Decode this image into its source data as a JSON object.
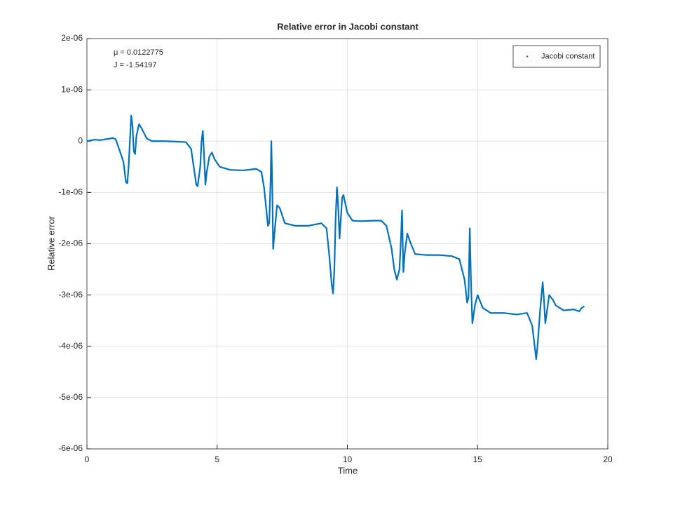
{
  "chart_data": {
    "type": "line",
    "title": "Relative error in Jacobi constant",
    "xlabel": "Time",
    "ylabel": "Relative error",
    "annotations": [
      "μ = 0.0122775",
      "J = -1.54197"
    ],
    "legend": "northeast",
    "grid": true,
    "xlim": [
      0,
      20
    ],
    "xticks": [
      0,
      5,
      10,
      15,
      20
    ],
    "ylim": [
      -6e-06,
      2e-06
    ],
    "yticks": [
      {
        "value": -6e-06,
        "label": "-6e-06"
      },
      {
        "value": -5e-06,
        "label": "-5e-06"
      },
      {
        "value": -4e-06,
        "label": "-4e-06"
      },
      {
        "value": -3e-06,
        "label": "-3e-06"
      },
      {
        "value": -2e-06,
        "label": "-2e-06"
      },
      {
        "value": -1e-06,
        "label": "-1e-06"
      },
      0,
      {
        "value": 1e-06,
        "label": "1e-06"
      },
      {
        "value": 2e-06,
        "label": "2e-06"
      }
    ],
    "series": [
      {
        "name": "Jacobi constant",
        "color": "#0072bd",
        "x": [
          0,
          0.3,
          0.5,
          1.0,
          1.1,
          1.2,
          1.4,
          1.5,
          1.55,
          1.6,
          1.65,
          1.7,
          1.75,
          1.8,
          1.85,
          1.9,
          2.0,
          2.1,
          2.3,
          2.5,
          3.0,
          3.5,
          3.8,
          4.0,
          4.1,
          4.2,
          4.25,
          4.35,
          4.4,
          4.45,
          4.5,
          4.55,
          4.6,
          4.7,
          4.8,
          4.9,
          5.1,
          5.5,
          6.0,
          6.5,
          6.7,
          6.8,
          6.9,
          6.95,
          7.0,
          7.05,
          7.08,
          7.12,
          7.15,
          7.2,
          7.3,
          7.4,
          7.6,
          8.0,
          8.5,
          9.0,
          9.2,
          9.3,
          9.4,
          9.45,
          9.5,
          9.55,
          9.6,
          9.65,
          9.7,
          9.75,
          9.8,
          9.85,
          10.0,
          10.2,
          10.5,
          11.0,
          11.3,
          11.5,
          11.7,
          11.8,
          11.9,
          12.0,
          12.05,
          12.1,
          12.15,
          12.2,
          12.3,
          12.4,
          12.6,
          13.0,
          13.5,
          14.0,
          14.3,
          14.5,
          14.6,
          14.65,
          14.7,
          14.75,
          14.8,
          14.9,
          15.0,
          15.2,
          15.5,
          16.0,
          16.5,
          16.9,
          17.1,
          17.25,
          17.3,
          17.4,
          17.5,
          17.55,
          17.6,
          17.75,
          17.9,
          18.0,
          18.3,
          18.7,
          18.9,
          19.0,
          19.1
        ],
        "values": [
          0,
          3e-08,
          2e-08,
          6e-08,
          4e-08,
          -1e-07,
          -4e-07,
          -8e-07,
          -8.2e-07,
          -5e-07,
          0,
          5e-07,
          3e-07,
          -2e-07,
          -2.5e-07,
          1e-07,
          3.3e-07,
          2.5e-07,
          5e-08,
          0,
          0,
          -1e-08,
          -2e-08,
          -1.5e-07,
          -5e-07,
          -8.5e-07,
          -8.8e-07,
          -5e-07,
          0,
          2e-07,
          -3e-07,
          -8.5e-07,
          -6e-07,
          -3e-07,
          -2.2e-07,
          -3.5e-07,
          -5e-07,
          -5.6e-07,
          -5.7e-07,
          -5.4e-07,
          -6e-07,
          -9e-07,
          -1.4e-06,
          -1.65e-06,
          -1.6e-06,
          -8e-07,
          0,
          -1e-06,
          -2.1e-06,
          -1.8e-06,
          -1.25e-06,
          -1.3e-06,
          -1.6e-06,
          -1.65e-06,
          -1.65e-06,
          -1.6e-06,
          -1.7e-06,
          -2.2e-06,
          -2.8e-06,
          -2.97e-06,
          -2.5e-06,
          -1.5e-06,
          -9e-07,
          -1.3e-06,
          -1.9e-06,
          -1.5e-06,
          -1.1e-06,
          -1.05e-06,
          -1.4e-06,
          -1.55e-06,
          -1.56e-06,
          -1.55e-06,
          -1.55e-06,
          -1.65e-06,
          -2.1e-06,
          -2.5e-06,
          -2.7e-06,
          -2.5e-06,
          -2e-06,
          -1.35e-06,
          -2.55e-06,
          -2.2e-06,
          -1.8e-06,
          -1.95e-06,
          -2.2e-06,
          -2.22e-06,
          -2.22e-06,
          -2.24e-06,
          -2.3e-06,
          -2.7e-06,
          -3.15e-06,
          -3.05e-06,
          -1.7e-06,
          -2.8e-06,
          -3.55e-06,
          -3.2e-06,
          -3e-06,
          -3.25e-06,
          -3.35e-06,
          -3.35e-06,
          -3.38e-06,
          -3.35e-06,
          -3.6e-06,
          -4.25e-06,
          -4e-06,
          -3.3e-06,
          -2.75e-06,
          -3.1e-06,
          -3.55e-06,
          -3e-06,
          -3.1e-06,
          -3.2e-06,
          -3.3e-06,
          -3.28e-06,
          -3.32e-06,
          -3.25e-06,
          -3.22e-06
        ]
      }
    ]
  }
}
